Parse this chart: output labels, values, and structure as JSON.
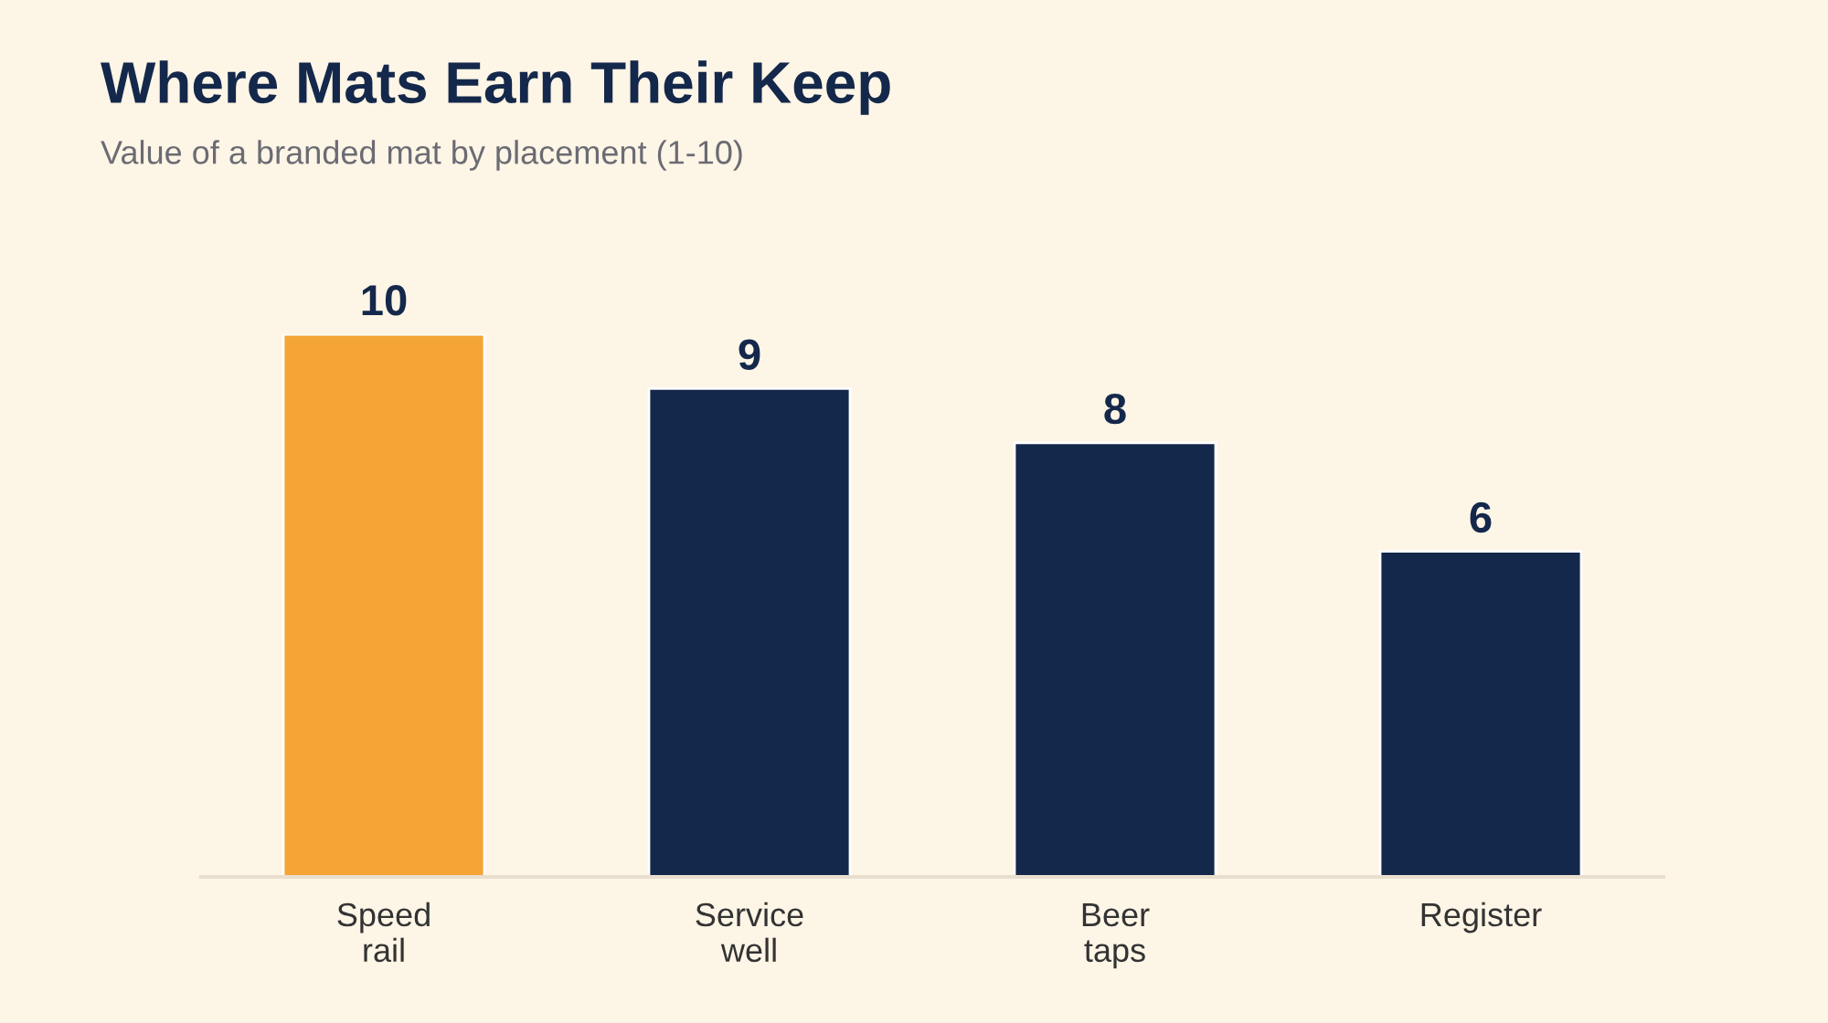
{
  "chart_data": {
    "type": "bar",
    "title": "Where Mats Earn Their Keep",
    "subtitle": "Value of a branded mat by placement (1-10)",
    "categories": [
      "Speed\nrail",
      "Service\nwell",
      "Beer\ntaps",
      "Register"
    ],
    "values": [
      10,
      9,
      8,
      6
    ],
    "colors": [
      "#f5a535",
      "#14284b",
      "#14284b",
      "#14284b"
    ],
    "data_labels": true,
    "grid": false,
    "legend": false
  }
}
